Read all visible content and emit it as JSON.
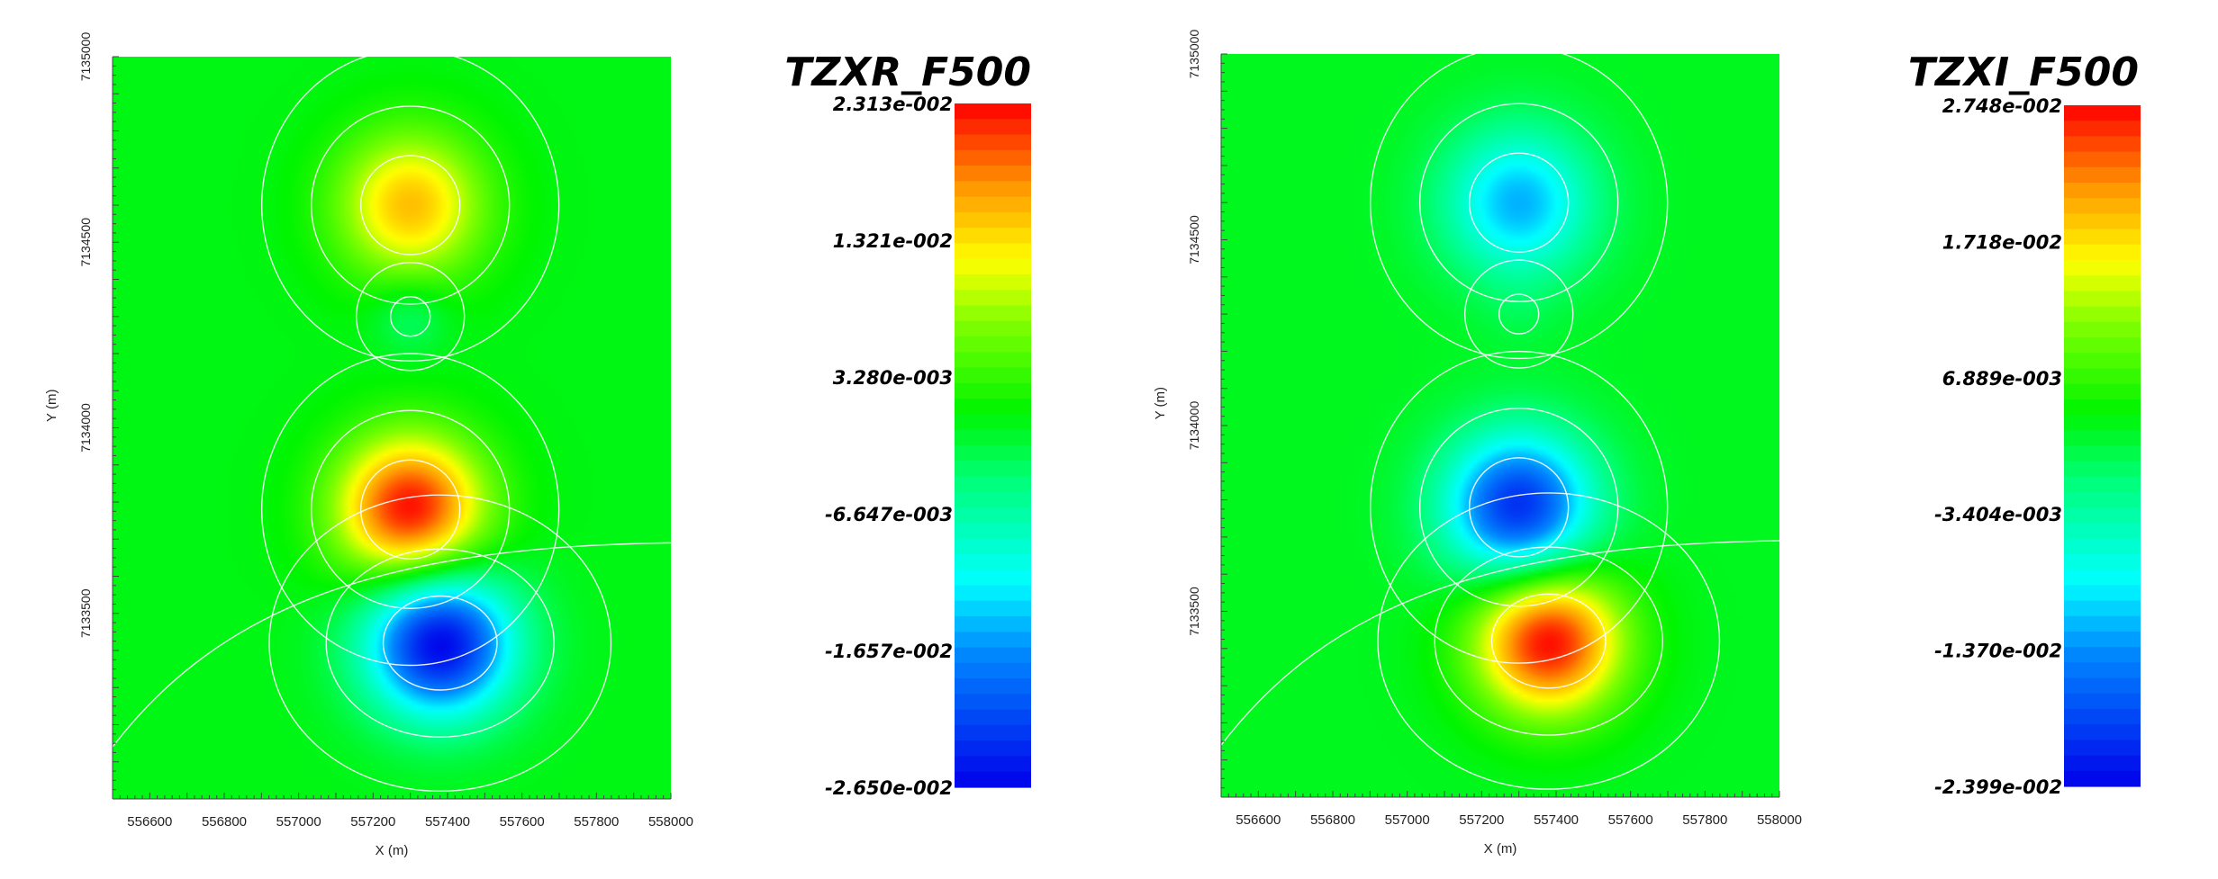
{
  "chart_data": [
    {
      "type": "heatmap",
      "title": "TZXR_F500",
      "xlabel": "X (m)",
      "ylabel": "Y (m)",
      "xlim": [
        556500,
        558000
      ],
      "ylim": [
        7133000,
        7135000
      ],
      "x_ticks": [
        "556600",
        "556800",
        "557000",
        "557200",
        "557400",
        "557600",
        "557800",
        "558000"
      ],
      "y_ticks": [
        "7133500",
        "7134000",
        "7134500",
        "7135000"
      ],
      "colorbar": {
        "min": -0.0265,
        "max": 0.02313,
        "labels": [
          "2.313e-002",
          "1.321e-002",
          "3.280e-003",
          "-6.647e-003",
          "-1.657e-002",
          "-2.650e-002"
        ]
      },
      "anomalies": [
        {
          "x": 557300,
          "y": 7134600,
          "value": 0.015
        },
        {
          "x": 557300,
          "y": 7134300,
          "value": -0.004
        },
        {
          "x": 557300,
          "y": 7133780,
          "value": 0.0231
        },
        {
          "x": 557380,
          "y": 7133420,
          "value": -0.0265
        }
      ],
      "background_value": 0.0
    },
    {
      "type": "heatmap",
      "title": "TZXI_F500",
      "xlabel": "X (m)",
      "ylabel": "Y (m)",
      "xlim": [
        556500,
        558000
      ],
      "ylim": [
        7133000,
        7135000
      ],
      "x_ticks": [
        "556600",
        "556800",
        "557000",
        "557200",
        "557400",
        "557600",
        "557800",
        "558000"
      ],
      "y_ticks": [
        "7133500",
        "7134000",
        "7134500",
        "7135000"
      ],
      "colorbar": {
        "min": -0.02399,
        "max": 0.02748,
        "labels": [
          "2.748e-002",
          "1.718e-002",
          "6.889e-003",
          "-3.404e-003",
          "-1.370e-002",
          "-2.399e-002"
        ]
      },
      "anomalies": [
        {
          "x": 557300,
          "y": 7134600,
          "value": -0.012
        },
        {
          "x": 557300,
          "y": 7134300,
          "value": 0.002
        },
        {
          "x": 557300,
          "y": 7133780,
          "value": -0.021
        },
        {
          "x": 557380,
          "y": 7133420,
          "value": 0.0275
        }
      ],
      "background_value": 0.003
    }
  ]
}
